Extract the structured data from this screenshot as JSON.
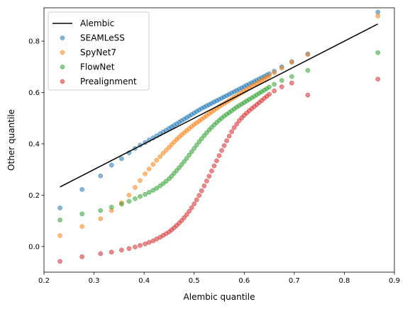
{
  "chart_data": {
    "type": "scatter",
    "xlabel": "Alembic quantile",
    "ylabel": "Other quantile",
    "xlim": [
      0.2,
      0.9
    ],
    "ylim": [
      -0.1,
      0.93
    ],
    "xticks": [
      0.2,
      0.3,
      0.4,
      0.5,
      0.6,
      0.7,
      0.8,
      0.9
    ],
    "yticks": [
      0.0,
      0.2,
      0.4,
      0.6,
      0.8
    ],
    "xtick_labels": [
      "0.2",
      "0.3",
      "0.4",
      "0.5",
      "0.6",
      "0.7",
      "0.8",
      "0.9"
    ],
    "ytick_labels": [
      "0.0",
      "0.2",
      "0.4",
      "0.6",
      "0.8"
    ],
    "grid": false,
    "legend": {
      "position": "top-left",
      "entries": [
        "Alembic",
        "SEAMLeSS",
        "SpyNet7",
        "FlowNet",
        "Prealignment"
      ]
    },
    "line": {
      "name": "Alembic",
      "color": "#000000",
      "x": [
        0.232,
        0.867
      ],
      "y": [
        0.232,
        0.867
      ]
    },
    "series": [
      {
        "name": "SEAMLeSS",
        "color": "#1f77b4",
        "x": [
          0.232,
          0.276,
          0.313,
          0.335,
          0.355,
          0.37,
          0.382,
          0.392,
          0.402,
          0.41,
          0.418,
          0.425,
          0.432,
          0.438,
          0.444,
          0.45,
          0.455,
          0.46,
          0.465,
          0.47,
          0.475,
          0.48,
          0.485,
          0.49,
          0.495,
          0.5,
          0.505,
          0.51,
          0.515,
          0.52,
          0.525,
          0.53,
          0.535,
          0.54,
          0.545,
          0.55,
          0.555,
          0.56,
          0.565,
          0.57,
          0.575,
          0.58,
          0.585,
          0.59,
          0.595,
          0.6,
          0.605,
          0.61,
          0.615,
          0.62,
          0.625,
          0.63,
          0.635,
          0.64,
          0.645,
          0.65,
          0.66,
          0.675,
          0.695,
          0.727,
          0.867
        ],
        "y": [
          0.15,
          0.222,
          0.275,
          0.317,
          0.342,
          0.365,
          0.382,
          0.395,
          0.405,
          0.415,
          0.423,
          0.431,
          0.439,
          0.446,
          0.453,
          0.46,
          0.466,
          0.472,
          0.478,
          0.484,
          0.49,
          0.496,
          0.502,
          0.508,
          0.514,
          0.52,
          0.526,
          0.532,
          0.538,
          0.543,
          0.548,
          0.553,
          0.558,
          0.563,
          0.568,
          0.573,
          0.578,
          0.583,
          0.588,
          0.593,
          0.598,
          0.603,
          0.608,
          0.613,
          0.618,
          0.623,
          0.628,
          0.633,
          0.638,
          0.643,
          0.648,
          0.653,
          0.658,
          0.663,
          0.668,
          0.673,
          0.683,
          0.7,
          0.72,
          0.75,
          0.913
        ]
      },
      {
        "name": "SpyNet7",
        "color": "#ff7f0e",
        "x": [
          0.232,
          0.276,
          0.313,
          0.335,
          0.355,
          0.37,
          0.382,
          0.392,
          0.402,
          0.41,
          0.418,
          0.425,
          0.432,
          0.438,
          0.444,
          0.45,
          0.455,
          0.46,
          0.465,
          0.47,
          0.475,
          0.48,
          0.485,
          0.49,
          0.495,
          0.5,
          0.505,
          0.51,
          0.515,
          0.52,
          0.525,
          0.53,
          0.535,
          0.54,
          0.545,
          0.55,
          0.555,
          0.56,
          0.565,
          0.57,
          0.575,
          0.58,
          0.585,
          0.59,
          0.595,
          0.6,
          0.605,
          0.61,
          0.615,
          0.62,
          0.625,
          0.63,
          0.635,
          0.64,
          0.645,
          0.65,
          0.66,
          0.675,
          0.695,
          0.727,
          0.867
        ],
        "y": [
          0.042,
          0.078,
          0.108,
          0.14,
          0.17,
          0.2,
          0.23,
          0.257,
          0.283,
          0.302,
          0.32,
          0.336,
          0.35,
          0.363,
          0.375,
          0.386,
          0.397,
          0.407,
          0.417,
          0.426,
          0.435,
          0.443,
          0.451,
          0.459,
          0.467,
          0.475,
          0.482,
          0.489,
          0.496,
          0.503,
          0.51,
          0.517,
          0.524,
          0.531,
          0.538,
          0.545,
          0.551,
          0.557,
          0.563,
          0.569,
          0.575,
          0.581,
          0.587,
          0.593,
          0.599,
          0.605,
          0.611,
          0.617,
          0.623,
          0.629,
          0.635,
          0.641,
          0.647,
          0.653,
          0.659,
          0.665,
          0.677,
          0.695,
          0.718,
          0.748,
          0.898
        ]
      },
      {
        "name": "FlowNet",
        "color": "#2ca02c",
        "x": [
          0.232,
          0.276,
          0.313,
          0.335,
          0.355,
          0.37,
          0.382,
          0.392,
          0.402,
          0.41,
          0.418,
          0.425,
          0.432,
          0.438,
          0.444,
          0.45,
          0.455,
          0.46,
          0.465,
          0.47,
          0.475,
          0.48,
          0.485,
          0.49,
          0.495,
          0.5,
          0.505,
          0.51,
          0.515,
          0.52,
          0.525,
          0.53,
          0.535,
          0.54,
          0.545,
          0.55,
          0.555,
          0.56,
          0.565,
          0.57,
          0.575,
          0.58,
          0.585,
          0.59,
          0.595,
          0.6,
          0.605,
          0.61,
          0.615,
          0.62,
          0.625,
          0.63,
          0.635,
          0.64,
          0.645,
          0.65,
          0.66,
          0.675,
          0.695,
          0.727,
          0.867
        ],
        "y": [
          0.103,
          0.127,
          0.14,
          0.153,
          0.165,
          0.176,
          0.186,
          0.195,
          0.203,
          0.211,
          0.219,
          0.227,
          0.236,
          0.245,
          0.254,
          0.264,
          0.274,
          0.285,
          0.296,
          0.307,
          0.319,
          0.331,
          0.343,
          0.356,
          0.369,
          0.382,
          0.395,
          0.408,
          0.42,
          0.432,
          0.443,
          0.454,
          0.464,
          0.474,
          0.483,
          0.492,
          0.5,
          0.508,
          0.515,
          0.522,
          0.529,
          0.536,
          0.543,
          0.549,
          0.555,
          0.561,
          0.567,
          0.573,
          0.579,
          0.585,
          0.591,
          0.597,
          0.603,
          0.609,
          0.615,
          0.621,
          0.632,
          0.647,
          0.662,
          0.686,
          0.755
        ]
      },
      {
        "name": "Prealignment",
        "color": "#d62728",
        "x": [
          0.232,
          0.276,
          0.313,
          0.335,
          0.355,
          0.37,
          0.382,
          0.392,
          0.402,
          0.41,
          0.418,
          0.425,
          0.432,
          0.438,
          0.444,
          0.45,
          0.455,
          0.46,
          0.465,
          0.47,
          0.475,
          0.48,
          0.485,
          0.49,
          0.495,
          0.5,
          0.505,
          0.51,
          0.515,
          0.52,
          0.525,
          0.53,
          0.535,
          0.54,
          0.545,
          0.55,
          0.555,
          0.56,
          0.565,
          0.57,
          0.575,
          0.58,
          0.585,
          0.59,
          0.595,
          0.6,
          0.605,
          0.61,
          0.615,
          0.62,
          0.625,
          0.63,
          0.635,
          0.64,
          0.645,
          0.65,
          0.66,
          0.675,
          0.695,
          0.727,
          0.867
        ],
        "y": [
          -0.058,
          -0.04,
          -0.028,
          -0.022,
          -0.014,
          -0.008,
          -0.002,
          0.004,
          0.01,
          0.016,
          0.022,
          0.029,
          0.036,
          0.043,
          0.05,
          0.057,
          0.065,
          0.073,
          0.082,
          0.091,
          0.101,
          0.112,
          0.124,
          0.137,
          0.151,
          0.166,
          0.182,
          0.199,
          0.217,
          0.236,
          0.255,
          0.274,
          0.294,
          0.314,
          0.334,
          0.354,
          0.374,
          0.393,
          0.412,
          0.43,
          0.447,
          0.463,
          0.477,
          0.49,
          0.501,
          0.511,
          0.52,
          0.529,
          0.537,
          0.545,
          0.553,
          0.561,
          0.569,
          0.577,
          0.585,
          0.593,
          0.606,
          0.622,
          0.637,
          0.59,
          0.652
        ]
      }
    ]
  }
}
